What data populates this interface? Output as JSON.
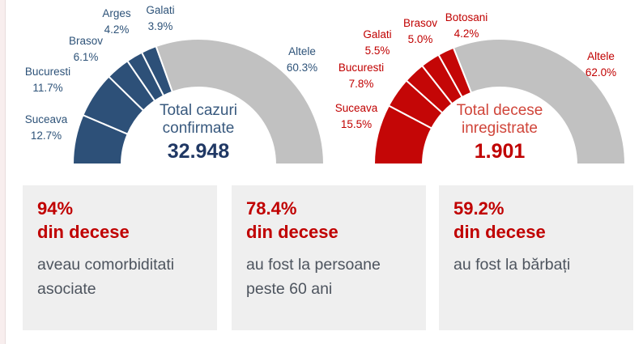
{
  "page": {
    "background": "#ffffff",
    "left_strip_color": "#f8eeee"
  },
  "chart_data": [
    {
      "type": "pie",
      "subtype": "half-donut",
      "legend": false,
      "center": {
        "line1": "Total cazuri",
        "line2": "confirmate",
        "value": "32.948"
      },
      "categories": [
        "Suceava",
        "Bucuresti",
        "Brasov",
        "Arges",
        "Galati",
        "Altele"
      ],
      "values": [
        12.7,
        11.7,
        6.1,
        4.2,
        3.9,
        60.3
      ],
      "labels": [
        "12.7%",
        "11.7%",
        "6.1%",
        "4.2%",
        "3.9%",
        "60.3%"
      ],
      "colors": [
        "#2d5078",
        "#2d5078",
        "#2d5078",
        "#2d5078",
        "#2d5078",
        "#c1c1c1"
      ],
      "accent": "#2d5078",
      "other_color": "#c1c1c1",
      "label_color": "#2e5379",
      "center_title_color": "#38597e",
      "center_value_color": "#203864"
    },
    {
      "type": "pie",
      "subtype": "half-donut",
      "legend": false,
      "center": {
        "line1": "Total decese",
        "line2": "inregistrate",
        "value": "1.901"
      },
      "categories": [
        "Suceava",
        "Bucuresti",
        "Galati",
        "Brasov",
        "Botosani",
        "Altele"
      ],
      "values": [
        15.5,
        7.8,
        5.5,
        5.0,
        4.2,
        62.0
      ],
      "labels": [
        "15.5%",
        "7.8%",
        "5.5%",
        "5.0%",
        "4.2%",
        "62.0%"
      ],
      "colors": [
        "#c40606",
        "#c40606",
        "#c40606",
        "#c40606",
        "#c40606",
        "#c1c1c1"
      ],
      "accent": "#c40606",
      "other_color": "#c1c1c1",
      "label_color": "#c00000",
      "center_title_color": "#d0453a",
      "center_value_color": "#c00000"
    }
  ],
  "cards": [
    {
      "headline": "94%",
      "subhead": "din decese",
      "body": "aveau comorbiditati asociate"
    },
    {
      "headline": "78.4%",
      "subhead": "din decese",
      "body": "au fost la persoane peste 60 ani"
    },
    {
      "headline": "59.2%",
      "subhead": "din decese",
      "body": "au fost la bărbați"
    }
  ]
}
